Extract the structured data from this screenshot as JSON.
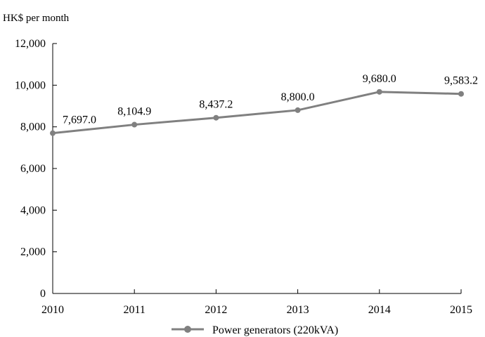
{
  "chart_data": {
    "type": "line",
    "ylabel": "HK$ per month",
    "xlabel": "",
    "x": [
      "2010",
      "2011",
      "2012",
      "2013",
      "2014",
      "2015"
    ],
    "ylim": [
      0,
      12000
    ],
    "yticks": [
      "0",
      "2,000",
      "4,000",
      "6,000",
      "8,000",
      "10,000",
      "12,000"
    ],
    "grid": false,
    "legend_position": "bottom",
    "series": [
      {
        "name": "Power generators (220kVA)",
        "values": [
          7697.0,
          8104.9,
          8437.2,
          8800.0,
          9680.0,
          9583.2
        ],
        "labels": [
          "7,697.0",
          "8,104.9",
          "8,437.2",
          "8,800.0",
          "9,680.0",
          "9,583.2"
        ],
        "color": "#808080"
      }
    ]
  }
}
